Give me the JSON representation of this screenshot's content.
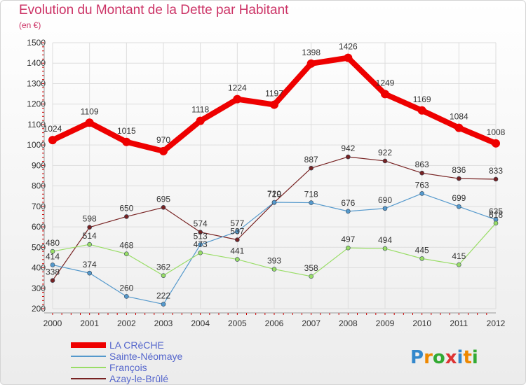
{
  "header": {
    "title": "Evolution du Montant de la Dette par Habitant",
    "subtitle": "(en €)"
  },
  "colors": {
    "title": "#cc3366",
    "grid": "#dddddd",
    "axis_tick": "#cc0000"
  },
  "logo": {
    "text": "Proxiti",
    "letters": [
      {
        "ch": "P",
        "color": "#3388cc"
      },
      {
        "ch": "r",
        "color": "#ee8800"
      },
      {
        "ch": "o",
        "color": "#33aa33"
      },
      {
        "ch": "x",
        "color": "#dd3333"
      },
      {
        "ch": "i",
        "color": "#3388cc"
      },
      {
        "ch": "t",
        "color": "#ee8800"
      },
      {
        "ch": "i",
        "color": "#33aa33"
      }
    ]
  },
  "chart_data": {
    "type": "line",
    "title": "Evolution du Montant de la Dette par Habitant",
    "subtitle": "(en €)",
    "x": [
      "2000",
      "2001",
      "2002",
      "2003",
      "2004",
      "2005",
      "2006",
      "2007",
      "2008",
      "2009",
      "2010",
      "2011",
      "2012"
    ],
    "ylim": [
      200,
      1500
    ],
    "yticks": [
      200,
      300,
      400,
      500,
      600,
      700,
      800,
      900,
      1000,
      1100,
      1200,
      1300,
      1400,
      1500
    ],
    "grid": true,
    "legend_position": "bottom-left",
    "series": [
      {
        "name": "LA CRèCHE",
        "color": "#ee0000",
        "width": 8,
        "marker": 6,
        "values": [
          1024,
          1109,
          1015,
          970,
          1118,
          1224,
          1197,
          1398,
          1426,
          1249,
          1169,
          1084,
          1008
        ]
      },
      {
        "name": "Sainte-Néomaye",
        "color": "#5599cc",
        "width": 1.2,
        "marker": 3,
        "values": [
          414,
          374,
          260,
          222,
          513,
          577,
          720,
          718,
          676,
          690,
          763,
          699,
          635
        ]
      },
      {
        "name": "François",
        "color": "#99dd66",
        "width": 1.2,
        "marker": 3,
        "values": [
          480,
          514,
          468,
          362,
          473,
          441,
          393,
          358,
          497,
          494,
          445,
          415,
          618
        ]
      },
      {
        "name": "Azay-le-Brûlé",
        "color": "#772222",
        "width": 1.2,
        "marker": 3,
        "values": [
          338,
          598,
          650,
          695,
          574,
          537,
          719,
          887,
          942,
          922,
          863,
          836,
          833
        ]
      }
    ]
  }
}
